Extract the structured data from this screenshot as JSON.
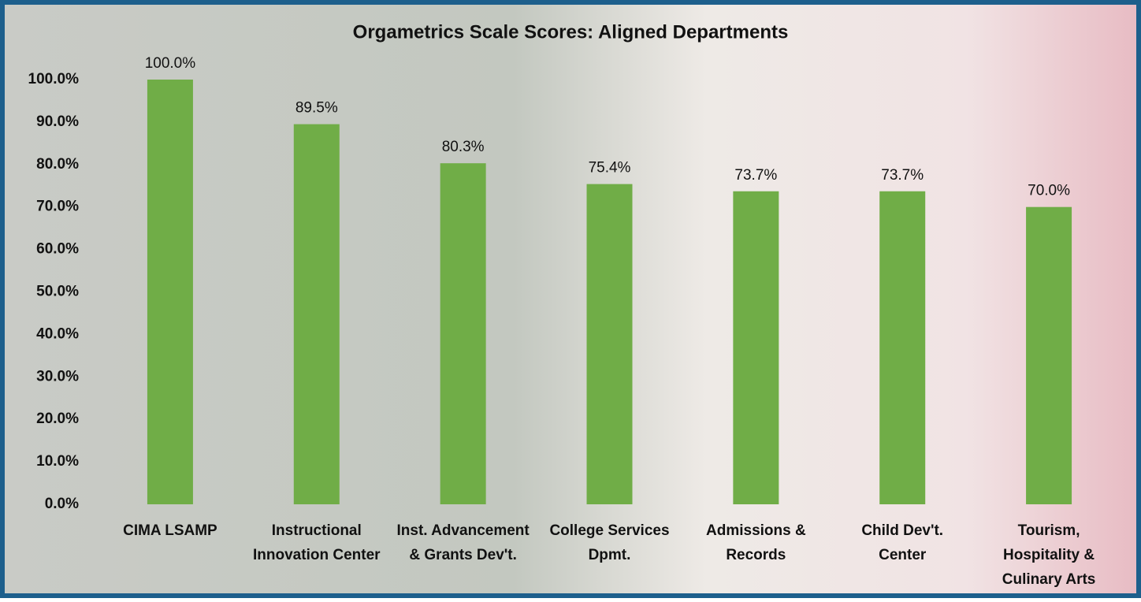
{
  "chart_data": {
    "type": "bar",
    "title": "Orgametrics Scale Scores: Aligned Departments",
    "categories": [
      [
        "CIMA LSAMP"
      ],
      [
        "Instructional",
        "Innovation Center"
      ],
      [
        "Inst. Advancement",
        "& Grants Dev't."
      ],
      [
        "College Services",
        "Dpmt."
      ],
      [
        "Admissions &",
        "Records"
      ],
      [
        "Child Dev't.",
        "Center"
      ],
      [
        "Tourism,",
        "Hospitality &",
        "Culinary Arts"
      ]
    ],
    "values": [
      100,
      89.5,
      80.3,
      75.4,
      73.7,
      73.7,
      70
    ],
    "value_labels": [
      "100.0%",
      "89.5%",
      "80.3%",
      "75.4%",
      "73.7%",
      "73.7%",
      "70.0%"
    ],
    "color": "#70ad47",
    "ylim": [
      0,
      100
    ],
    "yticks": [
      {
        "value": 0,
        "label": "0.0%"
      },
      {
        "value": 10,
        "label": "10.0%"
      },
      {
        "value": 20,
        "label": "20.0%"
      },
      {
        "value": 30,
        "label": "30.0%"
      },
      {
        "value": 40,
        "label": "40.0%"
      },
      {
        "value": 50,
        "label": "50.0%"
      },
      {
        "value": 60,
        "label": "60.0%"
      },
      {
        "value": 70,
        "label": "70.0%"
      },
      {
        "value": 80,
        "label": "80.0%"
      },
      {
        "value": 90,
        "label": "90.0%"
      },
      {
        "value": 100,
        "label": "100.0%"
      }
    ],
    "grid": false
  }
}
